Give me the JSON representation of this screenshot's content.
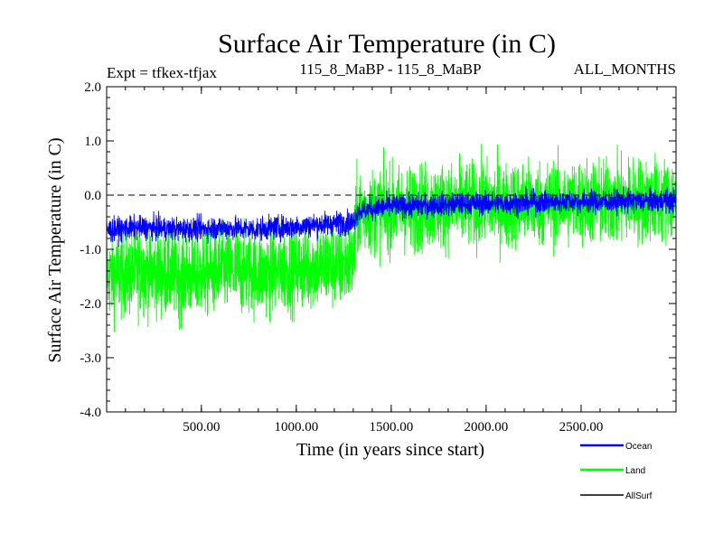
{
  "chart_data": {
    "type": "line",
    "title": "Surface Air Temperature (in C)",
    "left_caption": "Expt = tfkex-tfjax",
    "center_caption": "115_8_MaBP - 115_8_MaBP",
    "right_caption": "ALL_MONTHS",
    "xlabel": "Time (in years since start)",
    "ylabel": "Surface Air Temperature (in C)",
    "xlim": [
      1,
      3000
    ],
    "ylim": [
      -4.0,
      2.0
    ],
    "x_ticks": [
      500,
      1000,
      1500,
      2000,
      2500
    ],
    "x_tick_labels": [
      "500.00",
      "1000.00",
      "1500.00",
      "2000.00",
      "2500.00"
    ],
    "y_ticks": [
      2.0,
      1.0,
      0.0,
      -1.0,
      -2.0,
      -3.0,
      -4.0
    ],
    "y_tick_labels": [
      "2.0",
      "1.0",
      "0.0",
      "-1.0",
      "-2.0",
      "-3.0",
      "-4.0"
    ],
    "zero_line": 0.0,
    "grid": false,
    "legend_position": "bottom-right, outside plot",
    "series": [
      {
        "name": "Land",
        "color": "#00ff00",
        "x": [
          1,
          100,
          200,
          300,
          400,
          500,
          600,
          700,
          800,
          900,
          1000,
          1100,
          1200,
          1300,
          1320,
          1400,
          1500,
          1600,
          1700,
          1800,
          1900,
          2000,
          2100,
          2200,
          2300,
          2400,
          2500,
          2600,
          2700,
          2800,
          2900,
          3000
        ],
        "mean": [
          -1.5,
          -1.45,
          -1.4,
          -1.45,
          -1.5,
          -1.45,
          -1.4,
          -1.4,
          -1.45,
          -1.4,
          -1.35,
          -1.3,
          -1.3,
          -1.25,
          -0.3,
          -0.3,
          -0.25,
          -0.25,
          -0.2,
          -0.2,
          -0.2,
          -0.15,
          -0.2,
          -0.15,
          -0.15,
          -0.15,
          -0.1,
          -0.15,
          -0.1,
          -0.1,
          -0.1,
          -0.1
        ],
        "spread": 0.8
      },
      {
        "name": "Ocean",
        "color": "#0000ff",
        "x": [
          1,
          100,
          200,
          300,
          400,
          500,
          600,
          700,
          800,
          900,
          1000,
          1100,
          1200,
          1300,
          1320,
          1400,
          1500,
          1600,
          1700,
          1800,
          1900,
          2000,
          2100,
          2200,
          2300,
          2400,
          2500,
          2600,
          2700,
          2800,
          2900,
          3000
        ],
        "mean": [
          -0.65,
          -0.62,
          -0.6,
          -0.62,
          -0.63,
          -0.62,
          -0.6,
          -0.62,
          -0.63,
          -0.6,
          -0.58,
          -0.55,
          -0.52,
          -0.5,
          -0.3,
          -0.25,
          -0.2,
          -0.2,
          -0.18,
          -0.17,
          -0.16,
          -0.15,
          -0.15,
          -0.14,
          -0.13,
          -0.12,
          -0.12,
          -0.12,
          -0.11,
          -0.11,
          -0.1,
          -0.1
        ],
        "spread": 0.22
      },
      {
        "name": "AllSurf",
        "color": "#000000",
        "x": [],
        "mean": [],
        "spread": 0
      }
    ]
  }
}
